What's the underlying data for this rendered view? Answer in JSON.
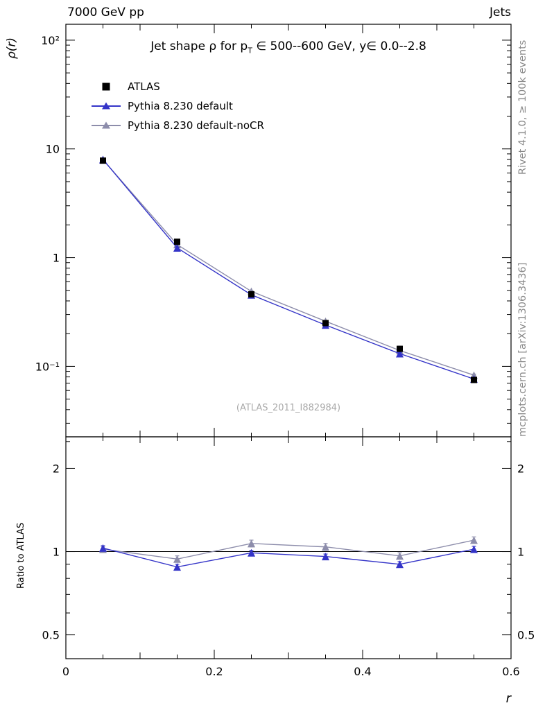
{
  "header": {
    "left": "7000 GeV pp",
    "right": "Jets"
  },
  "side_texts": {
    "rivet": "Rivet 4.1.0, ≥ 100k events",
    "mcplots": "mcplots.cern.ch [arXiv:1306.3436]"
  },
  "main_panel": {
    "title_pre": "Jet shape ρ for p",
    "title_sub": "T",
    "title_post": " ∈ 500--600 GeV, y∈ 0.0--2.8",
    "ylabel": "ρ(r)",
    "watermark": "(ATLAS_2011_I882984)"
  },
  "ratio_panel": {
    "ylabel": "Ratio to ATLAS"
  },
  "xaxis": {
    "label": "r"
  },
  "chart_data": {
    "type": "line",
    "title": "Jet shape ρ for p_T ∈ 500--600 GeV, y∈ 0.0--2.8",
    "xlabel": "r",
    "ylabel": "ρ(r)",
    "yscale": "log",
    "grid": false,
    "legend_position": "top-left",
    "xlim": [
      0,
      0.6
    ],
    "ylim": [
      0.0225,
      140
    ],
    "x": [
      0.05,
      0.15,
      0.25,
      0.35,
      0.45,
      0.55
    ],
    "xticks": [
      {
        "value": 0,
        "label": "0"
      },
      {
        "value": 0.2,
        "label": "0.2"
      },
      {
        "value": 0.4,
        "label": "0.4"
      },
      {
        "value": 0.6,
        "label": "0.6"
      }
    ],
    "yticks": [
      {
        "value": 100,
        "label": "10²"
      },
      {
        "value": 10,
        "label": "10"
      },
      {
        "value": 1,
        "label": "1"
      },
      {
        "value": 0.1,
        "label": "10⁻¹"
      }
    ],
    "series": [
      {
        "name": "ATLAS",
        "role": "data",
        "marker": "square",
        "color": "#000000",
        "values": [
          7.8,
          1.4,
          0.46,
          0.25,
          0.145,
          0.075
        ],
        "errors": [
          0.3,
          0.07,
          0.02,
          0.012,
          0.008,
          0.004
        ]
      },
      {
        "name": "Pythia 8.230 default",
        "role": "mc",
        "marker": "triangle",
        "color": "#3434c8",
        "values": [
          8.0,
          1.23,
          0.455,
          0.24,
          0.131,
          0.0765
        ],
        "errors": [
          0.1,
          0.02,
          0.008,
          0.005,
          0.003,
          0.002
        ],
        "ratio": [
          1.03,
          0.88,
          0.99,
          0.96,
          0.9,
          1.02
        ],
        "ratio_errors": [
          0.02,
          0.02,
          0.02,
          0.02,
          0.02,
          0.025
        ]
      },
      {
        "name": "Pythia 8.230 default-noCR",
        "role": "mc",
        "marker": "triangle",
        "color": "#8d8dab",
        "values": [
          7.95,
          1.32,
          0.49,
          0.26,
          0.14,
          0.083
        ],
        "errors": [
          0.1,
          0.02,
          0.008,
          0.005,
          0.003,
          0.002
        ],
        "ratio": [
          1.02,
          0.94,
          1.07,
          1.04,
          0.965,
          1.1
        ],
        "ratio_errors": [
          0.025,
          0.025,
          0.03,
          0.03,
          0.025,
          0.03
        ]
      }
    ],
    "ratio": {
      "ylabel": "Ratio to ATLAS",
      "ylim": [
        0.41,
        2.6
      ],
      "reference": 1,
      "yticks": [
        {
          "value": 2,
          "label": "2"
        },
        {
          "value": 1,
          "label": "1"
        },
        {
          "value": 0.5,
          "label": "0.5"
        }
      ]
    }
  }
}
